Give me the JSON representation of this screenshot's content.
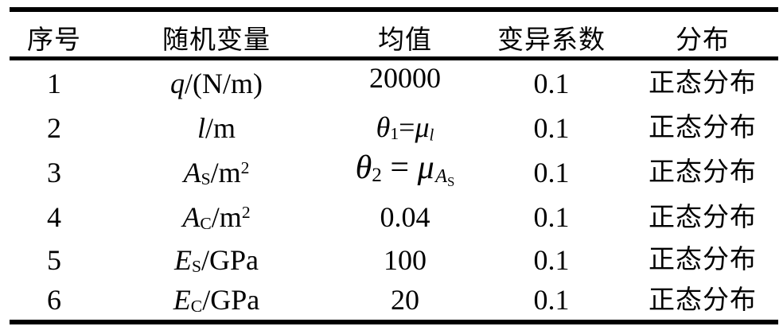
{
  "table": {
    "headers": [
      "序号",
      "随机变量",
      "均值",
      "变异系数",
      "分布"
    ],
    "rows": [
      {
        "no": "1",
        "variable": [
          {
            "t": "q",
            "s": "i"
          },
          {
            "t": "/(N/m)"
          }
        ],
        "mean": {
          "style": "raised",
          "segs": [
            {
              "t": "20000"
            }
          ]
        },
        "cv": "0.1",
        "dist": "正态分布"
      },
      {
        "no": "2",
        "variable": [
          {
            "t": "l",
            "s": "i"
          },
          {
            "t": "/m"
          }
        ],
        "mean": {
          "segs": [
            {
              "t": "θ",
              "s": "i"
            },
            {
              "t": "1",
              "s": "sub"
            },
            {
              "t": "="
            },
            {
              "t": "μ",
              "s": "i"
            },
            {
              "t": "l",
              "s": "subi"
            }
          ]
        },
        "cv": "0.1",
        "dist": "正态分布"
      },
      {
        "no": "3",
        "variable": [
          {
            "t": "A",
            "s": "i"
          },
          {
            "t": "S",
            "s": "sub"
          },
          {
            "t": "/m"
          },
          {
            "t": "2",
            "s": "sup"
          }
        ],
        "mean": {
          "style": "large",
          "segs": [
            {
              "t": "θ",
              "s": "i"
            },
            {
              "t": "2",
              "s": "sub"
            },
            {
              "t": " = "
            },
            {
              "t": "μ",
              "s": "i"
            },
            {
              "t": "A",
              "s": "subi"
            },
            {
              "t": "S",
              "s": "subsub"
            }
          ]
        },
        "cv": "0.1",
        "dist": "正态分布"
      },
      {
        "no": "4",
        "variable": [
          {
            "t": "A",
            "s": "i"
          },
          {
            "t": "C",
            "s": "sub"
          },
          {
            "t": "/m"
          },
          {
            "t": "2",
            "s": "sup"
          }
        ],
        "mean": {
          "segs": [
            {
              "t": "0.04"
            }
          ]
        },
        "cv": "0.1",
        "dist": "正态分布"
      },
      {
        "no": "5",
        "variable": [
          {
            "t": "E",
            "s": "i"
          },
          {
            "t": "S",
            "s": "sub"
          },
          {
            "t": "/GPa"
          }
        ],
        "mean": {
          "segs": [
            {
              "t": "100"
            }
          ]
        },
        "cv": "0.1",
        "dist": "正态分布"
      },
      {
        "no": "6",
        "variable": [
          {
            "t": "E",
            "s": "i"
          },
          {
            "t": "C",
            "s": "sub"
          },
          {
            "t": "/GPa"
          }
        ],
        "mean": {
          "segs": [
            {
              "t": "20"
            }
          ]
        },
        "cv": "0.1",
        "dist": "正态分布"
      }
    ]
  }
}
